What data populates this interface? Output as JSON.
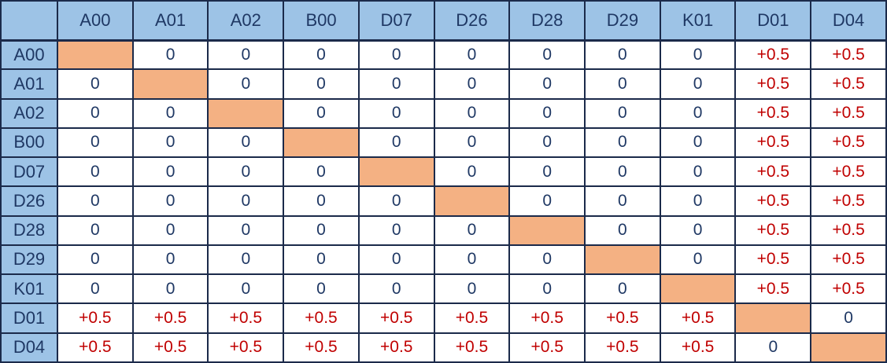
{
  "chart_data": {
    "type": "table",
    "corner_label": "",
    "col_labels": [
      "A00",
      "A01",
      "A02",
      "B00",
      "D07",
      "D26",
      "D28",
      "D29",
      "K01",
      "D01",
      "D04"
    ],
    "row_labels": [
      "A00",
      "A01",
      "A02",
      "B00",
      "D07",
      "D26",
      "D28",
      "D29",
      "K01",
      "D01",
      "D04"
    ],
    "matrix": [
      [
        null,
        "0",
        "0",
        "0",
        "0",
        "0",
        "0",
        "0",
        "0",
        "+0.5",
        "+0.5"
      ],
      [
        "0",
        null,
        "0",
        "0",
        "0",
        "0",
        "0",
        "0",
        "0",
        "+0.5",
        "+0.5"
      ],
      [
        "0",
        "0",
        null,
        "0",
        "0",
        "0",
        "0",
        "0",
        "0",
        "+0.5",
        "+0.5"
      ],
      [
        "0",
        "0",
        "0",
        null,
        "0",
        "0",
        "0",
        "0",
        "0",
        "+0.5",
        "+0.5"
      ],
      [
        "0",
        "0",
        "0",
        "0",
        null,
        "0",
        "0",
        "0",
        "0",
        "+0.5",
        "+0.5"
      ],
      [
        "0",
        "0",
        "0",
        "0",
        "0",
        null,
        "0",
        "0",
        "0",
        "+0.5",
        "+0.5"
      ],
      [
        "0",
        "0",
        "0",
        "0",
        "0",
        "0",
        null,
        "0",
        "0",
        "+0.5",
        "+0.5"
      ],
      [
        "0",
        "0",
        "0",
        "0",
        "0",
        "0",
        "0",
        null,
        "0",
        "+0.5",
        "+0.5"
      ],
      [
        "0",
        "0",
        "0",
        "0",
        "0",
        "0",
        "0",
        "0",
        null,
        "+0.5",
        "+0.5"
      ],
      [
        "+0.5",
        "+0.5",
        "+0.5",
        "+0.5",
        "+0.5",
        "+0.5",
        "+0.5",
        "+0.5",
        "+0.5",
        null,
        "0"
      ],
      [
        "+0.5",
        "+0.5",
        "+0.5",
        "+0.5",
        "+0.5",
        "+0.5",
        "+0.5",
        "+0.5",
        "+0.5",
        "0",
        null
      ]
    ],
    "diagonal_note": "diagonal cells are filled solid orange with no value",
    "grid": true,
    "legend_position": "none",
    "title": ""
  },
  "colors": {
    "header_bg": "#9DC3E6",
    "diagonal_bg": "#F4B183",
    "text_navy": "#1F3864",
    "text_red": "#C00000",
    "border": "#1B2A4A",
    "cell_bg": "#FFFFFF"
  }
}
